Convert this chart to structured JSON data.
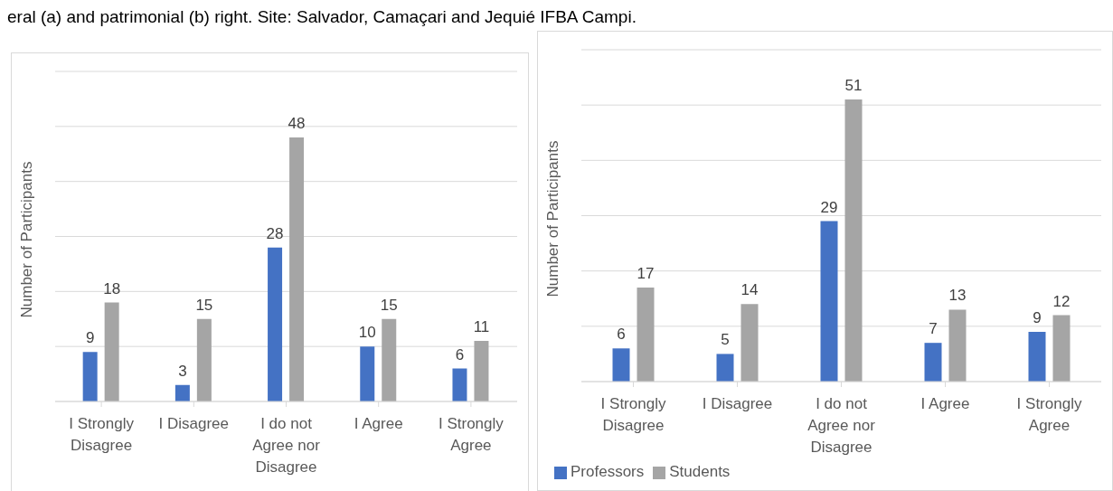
{
  "chart_data": [
    {
      "type": "bar",
      "annotations": [
        "eral (a) and patrimonial (b) right. Site: Salvador, Camaçari and Jequié IFBA Campi."
      ],
      "ylabel": "Number of Participants",
      "categories": [
        "I Strongly Disagree",
        "I Disagree",
        "I do not Agree nor Disagree",
        "I Agree",
        "I Strongly Agree"
      ],
      "series": [
        {
          "color": "#4472c4",
          "values": [
            9,
            3,
            28,
            10,
            6
          ]
        },
        {
          "color": "#a5a5a5",
          "values": [
            18,
            15,
            48,
            15,
            11
          ]
        }
      ],
      "ylim": [
        0,
        60
      ],
      "tick_labels": "x",
      "grid": "y",
      "data_labels": true,
      "legend": false
    },
    {
      "type": "bar",
      "ylabel": "Number of Participants",
      "categories": [
        "I Strongly Disagree",
        "I Disagree",
        "I do not Agree nor Disagree",
        "I Agree",
        "I Strongly Agree"
      ],
      "series": [
        {
          "name": "Professors",
          "color": "#4472c4",
          "values": [
            6,
            5,
            29,
            7,
            9
          ]
        },
        {
          "name": "Students",
          "color": "#a5a5a5",
          "values": [
            17,
            14,
            51,
            13,
            12
          ]
        }
      ],
      "ylim": [
        0,
        60
      ],
      "tick_labels": "x",
      "grid": "y",
      "data_labels": true,
      "legend": "bottom left"
    }
  ]
}
